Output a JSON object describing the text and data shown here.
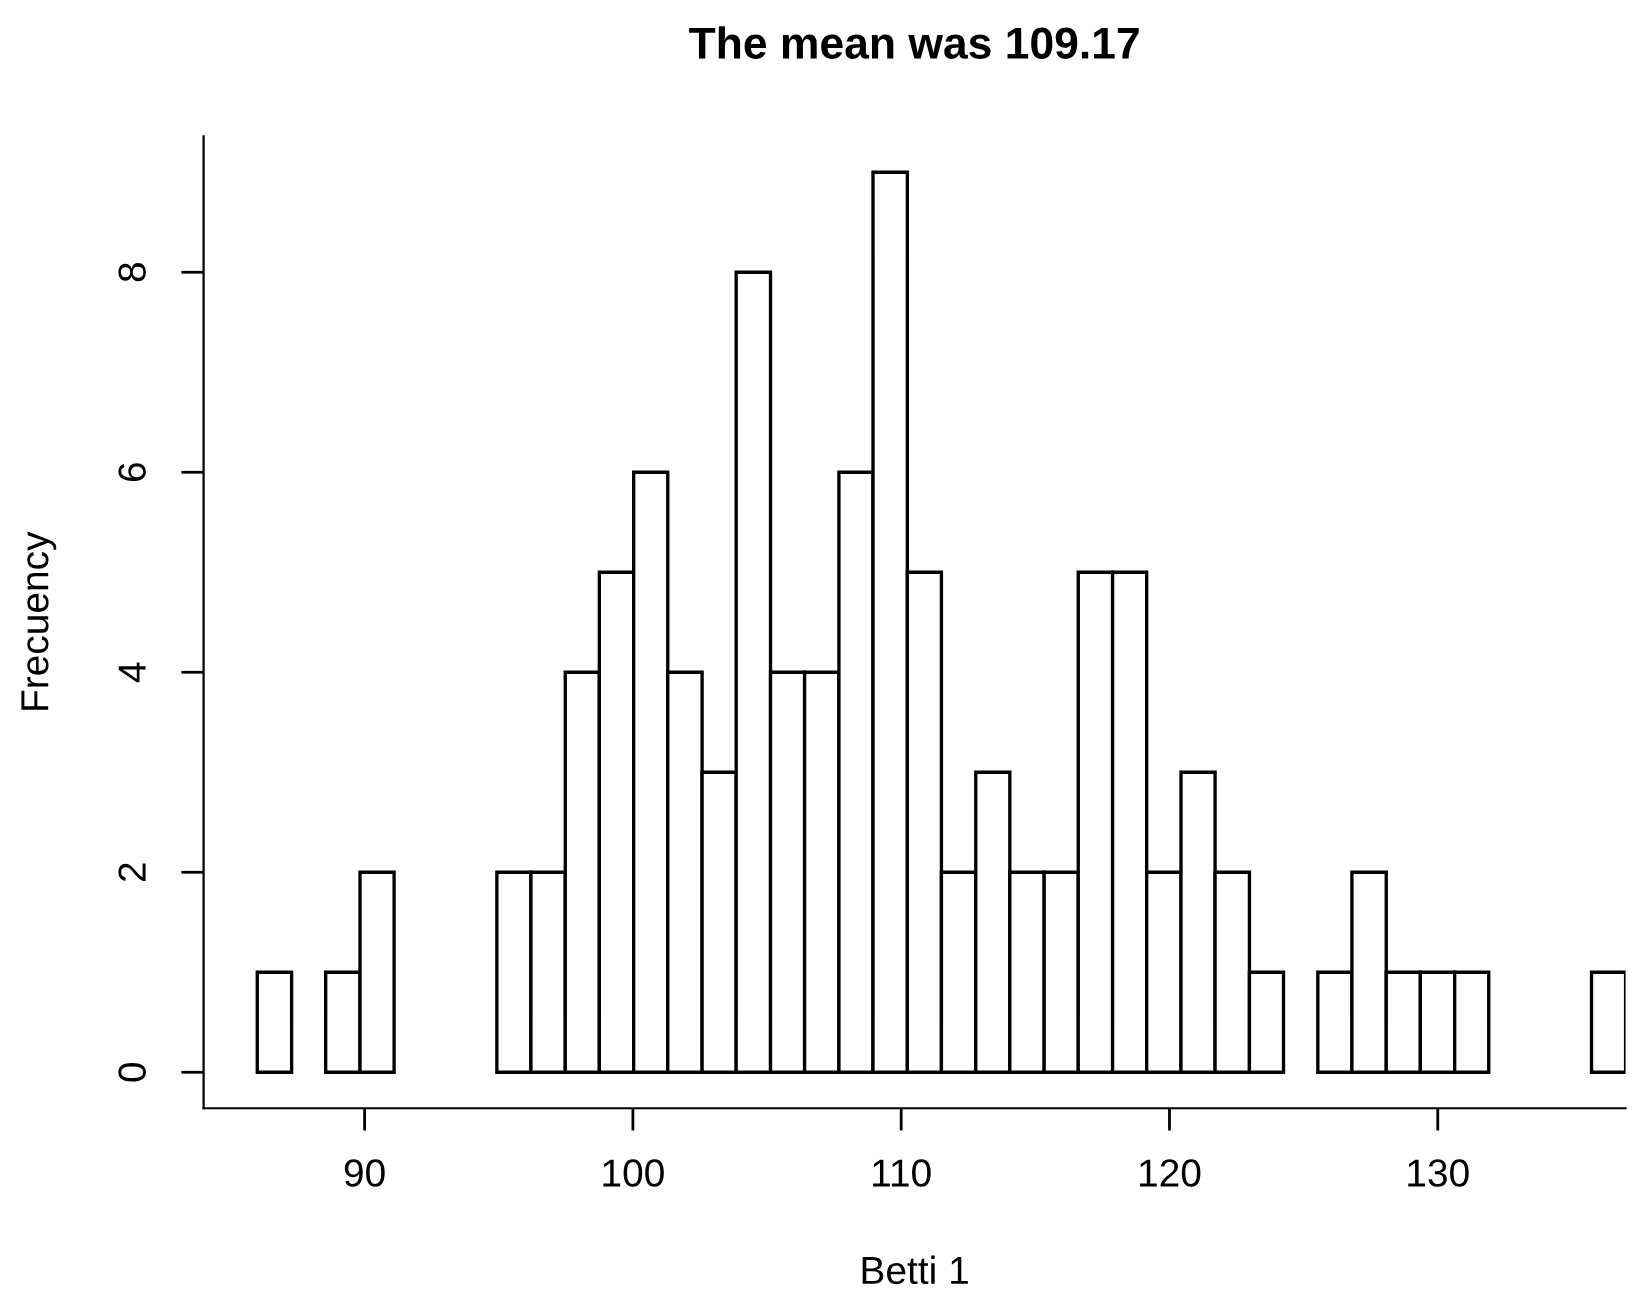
{
  "chart_data": {
    "type": "histogram",
    "title": "The mean was 109.17",
    "xlabel": "Betti 1",
    "ylabel": "Frecuency",
    "bins": [
      86,
      87.28,
      88.55,
      89.83,
      91.1,
      92.38,
      93.65,
      94.93,
      96.2,
      97.48,
      98.75,
      100.03,
      101.3,
      102.58,
      103.85,
      105.13,
      106.4,
      107.68,
      108.95,
      110.23,
      111.5,
      112.78,
      114.05,
      115.33,
      116.6,
      117.88,
      119.15,
      120.43,
      121.7,
      122.98,
      124.25,
      125.53,
      126.8,
      128.08,
      129.35,
      130.63,
      131.9,
      133.18,
      134.45,
      135.73,
      137
    ],
    "values": [
      1,
      0,
      1,
      2,
      0,
      0,
      0,
      2,
      2,
      4,
      5,
      6,
      4,
      3,
      8,
      4,
      4,
      6,
      9,
      5,
      2,
      3,
      2,
      2,
      5,
      5,
      2,
      3,
      2,
      1,
      0,
      1,
      2,
      1,
      1,
      1,
      0,
      0,
      0,
      1
    ],
    "color": "#ffffff",
    "xlim": [
      84,
      137
    ],
    "ylim": [
      -0.36,
      9.36
    ],
    "xticks": [
      90,
      100,
      110,
      120,
      130
    ],
    "yticks": [
      0,
      2,
      4,
      6,
      8
    ],
    "grid": false
  }
}
